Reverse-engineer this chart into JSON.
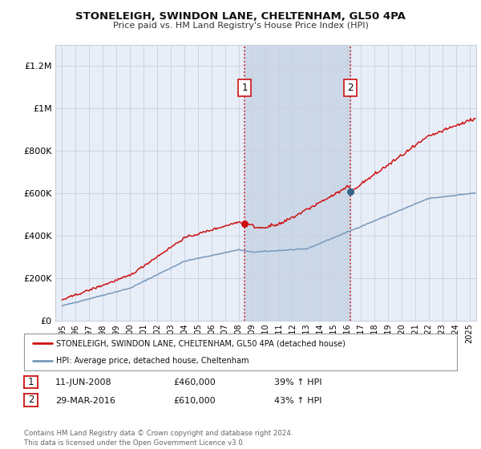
{
  "title": "STONELEIGH, SWINDON LANE, CHELTENHAM, GL50 4PA",
  "subtitle": "Price paid vs. HM Land Registry's House Price Index (HPI)",
  "ylim": [
    0,
    1300000
  ],
  "xlim_start": 1994.5,
  "xlim_end": 2025.5,
  "yticks": [
    0,
    200000,
    400000,
    600000,
    800000,
    1000000,
    1200000
  ],
  "ytick_labels": [
    "£0",
    "£200K",
    "£400K",
    "£600K",
    "£800K",
    "£1M",
    "£1.2M"
  ],
  "background_color": "#ffffff",
  "plot_bg_color": "#e8eef8",
  "grid_color": "#c8d0dc",
  "line1_color": "#cc1111",
  "line2_color": "#7799bb",
  "shaded_region_color": "#ccd8e8",
  "marker1_color": "#cc1111",
  "marker2_color": "#336688",
  "vline_color": "#cc1111",
  "event1_x": 2008.44,
  "event1_y": 460000,
  "event2_x": 2016.24,
  "event2_y": 610000,
  "legend_line1": "STONELEIGH, SWINDON LANE, CHELTENHAM, GL50 4PA (detached house)",
  "legend_line2": "HPI: Average price, detached house, Cheltenham",
  "event1_date": "11-JUN-2008",
  "event1_price": "£460,000",
  "event1_hpi": "39% ↑ HPI",
  "event2_date": "29-MAR-2016",
  "event2_price": "£610,000",
  "event2_hpi": "43% ↑ HPI",
  "footer": "Contains HM Land Registry data © Crown copyright and database right 2024.\nThis data is licensed under the Open Government Licence v3.0.",
  "xtick_years": [
    1995,
    1996,
    1997,
    1998,
    1999,
    2000,
    2001,
    2002,
    2003,
    2004,
    2005,
    2006,
    2007,
    2008,
    2009,
    2010,
    2011,
    2012,
    2013,
    2014,
    2015,
    2016,
    2017,
    2018,
    2019,
    2020,
    2021,
    2022,
    2023,
    2024,
    2025
  ]
}
